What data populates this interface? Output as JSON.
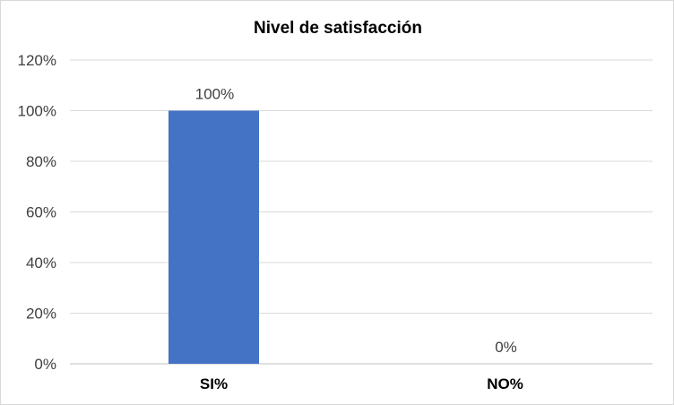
{
  "chart_data": {
    "type": "bar",
    "title": "Nivel de satisfacción",
    "categories": [
      "SI%",
      "NO%"
    ],
    "values": [
      100,
      0
    ],
    "data_labels": [
      "100%",
      "0%"
    ],
    "ylim": [
      0,
      120
    ],
    "yticks": [
      0,
      20,
      40,
      60,
      80,
      100,
      120
    ],
    "ytick_labels": [
      "0%",
      "20%",
      "40%",
      "60%",
      "80%",
      "100%",
      "120%"
    ],
    "grid": true,
    "legend": "none",
    "bar_color": "#4472C4"
  }
}
